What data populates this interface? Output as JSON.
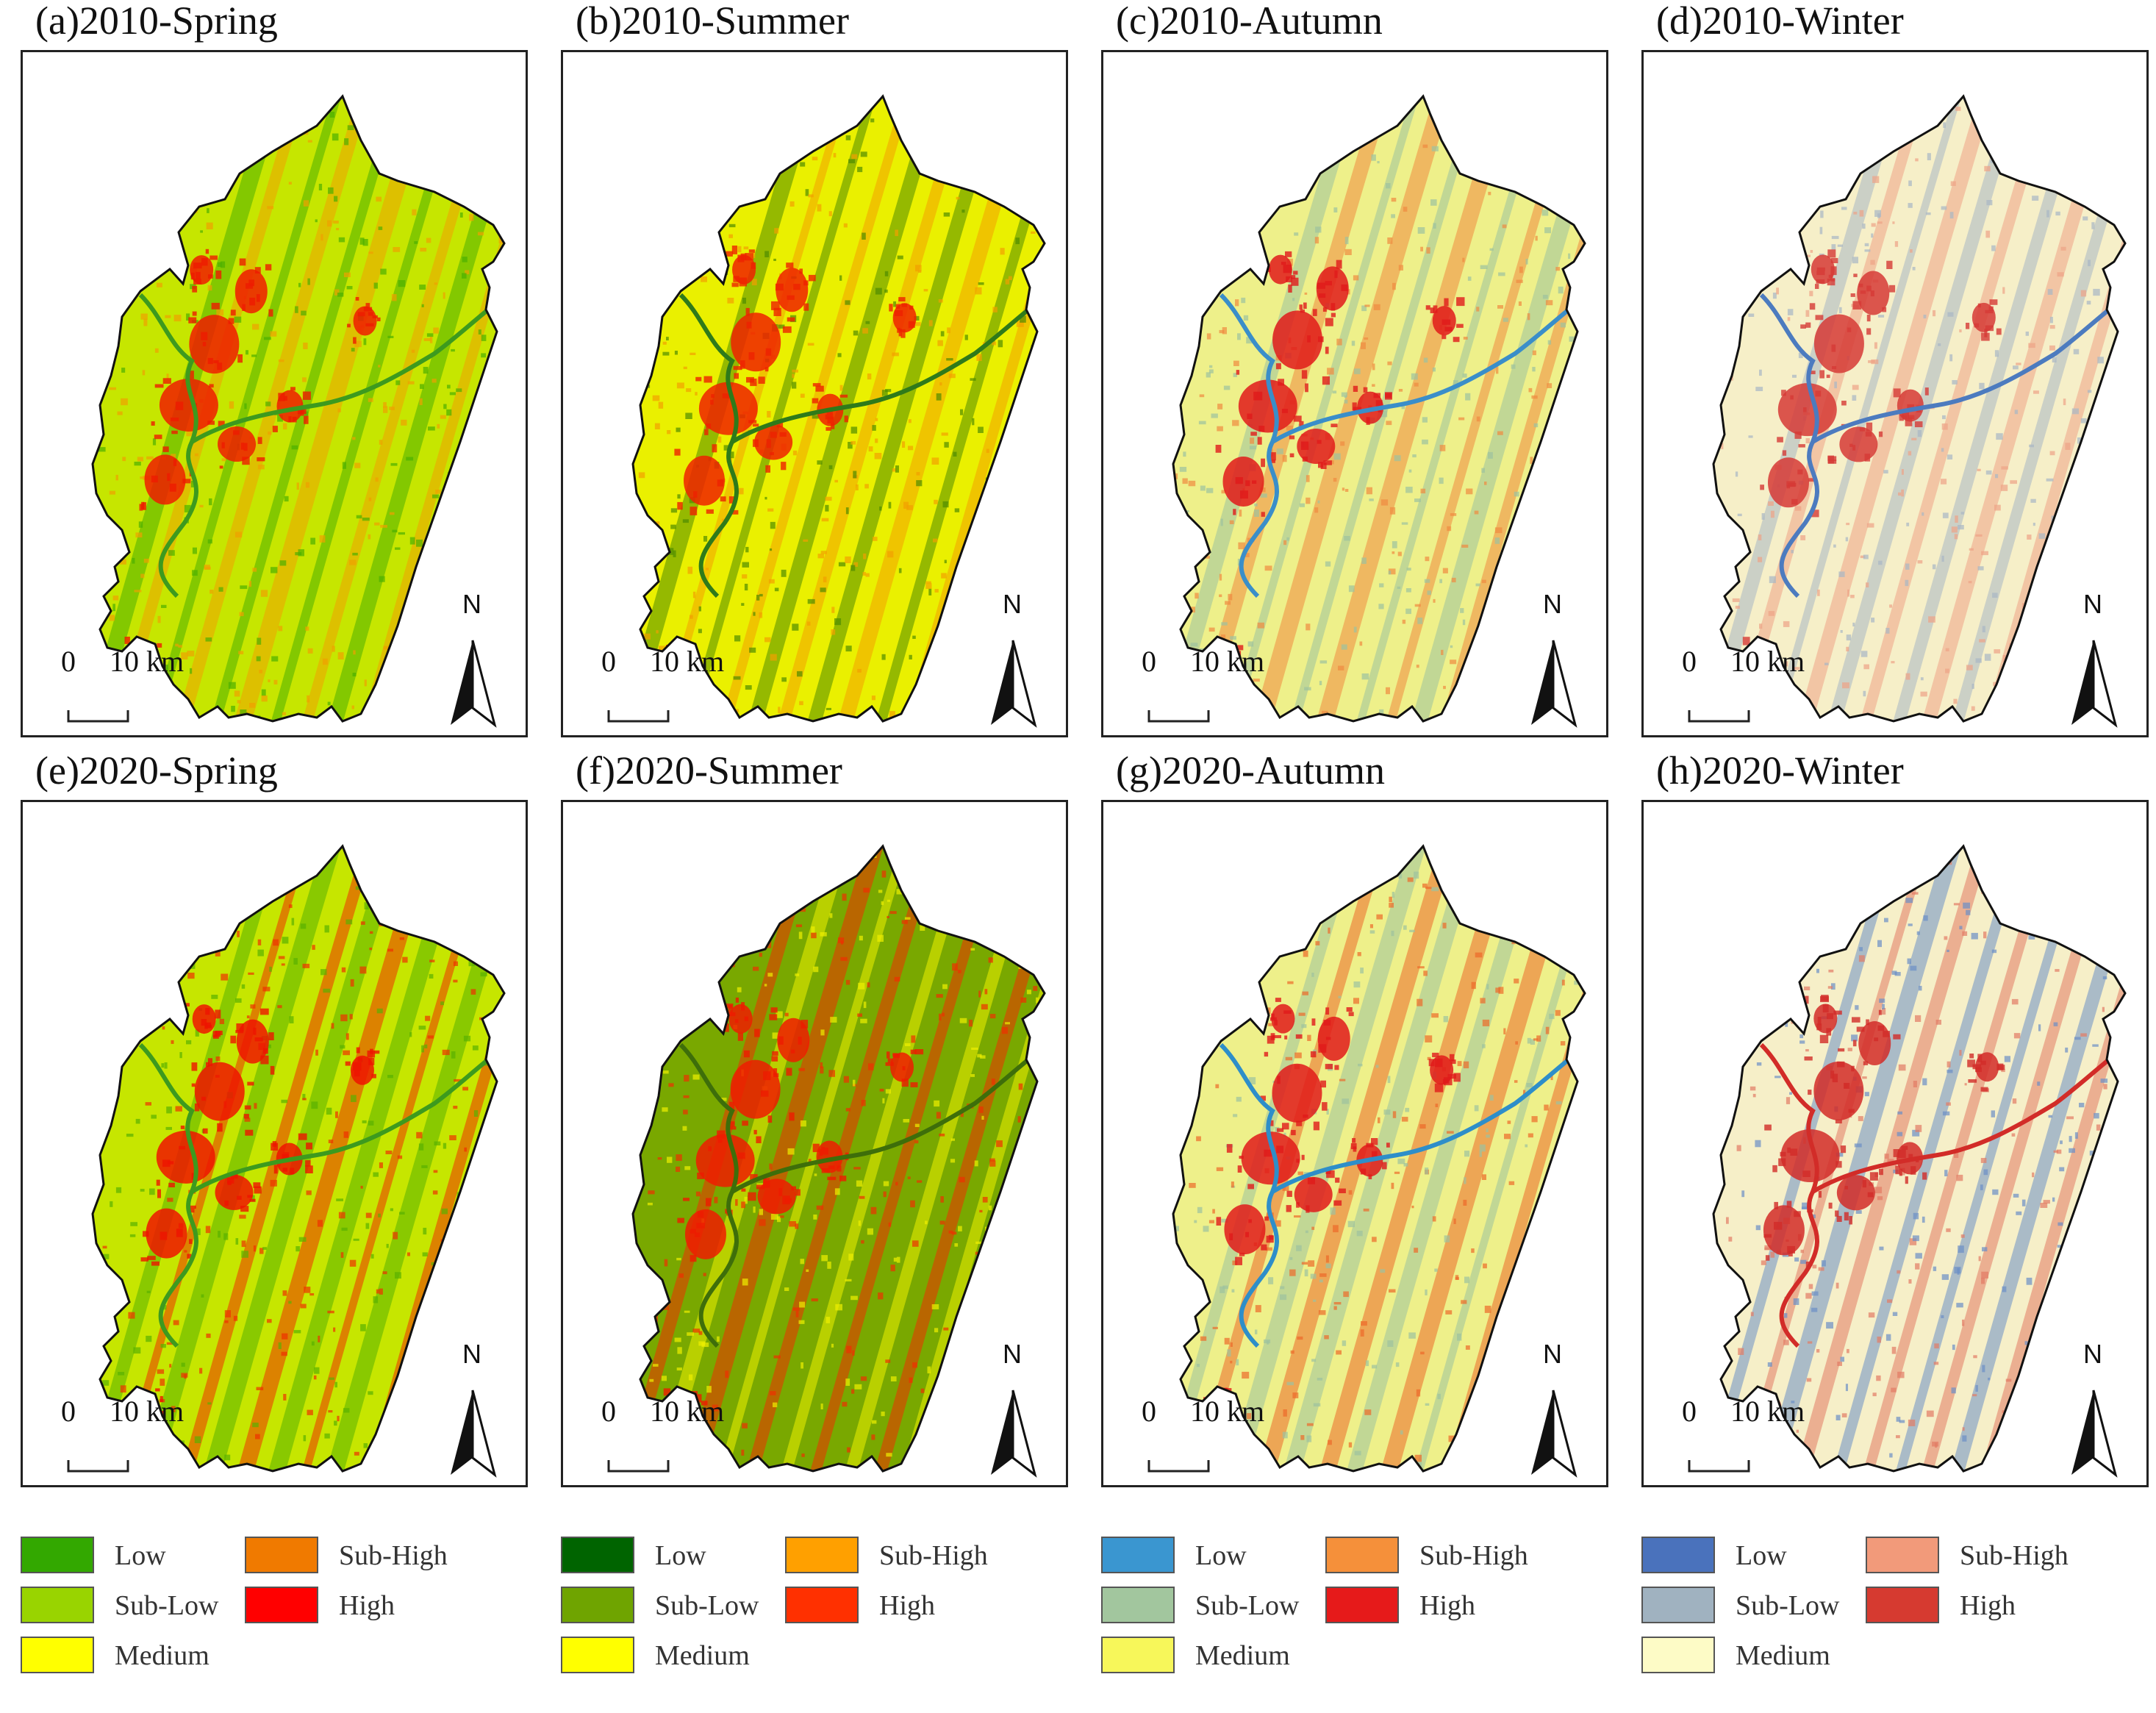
{
  "panels": [
    {
      "title": "(a)2010-Spring",
      "theme": 0,
      "base": "#c6e600",
      "tint_a": "#f0a000",
      "tint_b": "#4caf00",
      "hot": "#ee1c00",
      "river": "#3d9a1e"
    },
    {
      "title": "(b)2010-Summer",
      "theme": 1,
      "base": "#eaf000",
      "tint_a": "#f2a000",
      "tint_b": "#4f8c00",
      "hot": "#ee2200",
      "river": "#2f7a1a"
    },
    {
      "title": "(c)2010-Autumn",
      "theme": 2,
      "base": "#eef08a",
      "tint_a": "#f08a40",
      "tint_b": "#9dc29f",
      "hot": "#e01a1a",
      "river": "#3a8ec9"
    },
    {
      "title": "(d)2010-Winter",
      "theme": 3,
      "base": "#f6efc8",
      "tint_a": "#eea286",
      "tint_b": "#a8b7c4",
      "hot": "#d63a36",
      "river": "#4c7bbf"
    },
    {
      "title": "(e)2020-Spring",
      "theme": 0,
      "base": "#c6e600",
      "tint_a": "#ee3000",
      "tint_b": "#58b000",
      "hot": "#ee1400",
      "river": "#3d9a1e"
    },
    {
      "title": "(f)2020-Summer",
      "theme": 1,
      "base": "#79a800",
      "tint_a": "#eef000",
      "tint_b": "#ee3000",
      "hot": "#ee1c00",
      "river": "#3e6e0a"
    },
    {
      "title": "(g)2020-Autumn",
      "theme": 2,
      "base": "#eef08a",
      "tint_a": "#ec6a2a",
      "tint_b": "#9dc29f",
      "hot": "#e01a1a",
      "river": "#2e8ec9"
    },
    {
      "title": "(h)2020-Winter",
      "theme": 3,
      "base": "#f6efc8",
      "tint_a": "#e27a64",
      "tint_b": "#6b8fc6",
      "hot": "#d22c28",
      "river": "#d22c28"
    }
  ],
  "scale": {
    "zero": "0",
    "label": "10 km"
  },
  "north": "N",
  "legends": [
    {
      "items": [
        {
          "label": "Low",
          "color": "#33a800"
        },
        {
          "label": "Sub-High",
          "color": "#f07a00"
        },
        {
          "label": "Sub-Low",
          "color": "#99d400"
        },
        {
          "label": "High",
          "color": "#ff0000"
        },
        {
          "label": "Medium",
          "color": "#ffff00"
        }
      ]
    },
    {
      "items": [
        {
          "label": "Low",
          "color": "#006400"
        },
        {
          "label": "Sub-High",
          "color": "#ffa000"
        },
        {
          "label": "Sub-Low",
          "color": "#6fa400"
        },
        {
          "label": "High",
          "color": "#ff3000"
        },
        {
          "label": "Medium",
          "color": "#ffff00"
        }
      ]
    },
    {
      "items": [
        {
          "label": "Low",
          "color": "#3a96d0"
        },
        {
          "label": "Sub-High",
          "color": "#f5903a"
        },
        {
          "label": "Sub-Low",
          "color": "#a2c69e"
        },
        {
          "label": "High",
          "color": "#e61a1a"
        },
        {
          "label": "Medium",
          "color": "#f7f75a"
        }
      ]
    },
    {
      "items": [
        {
          "label": "Low",
          "color": "#4a72bc"
        },
        {
          "label": "Sub-High",
          "color": "#f29a7a"
        },
        {
          "label": "Sub-Low",
          "color": "#a0b2c0"
        },
        {
          "label": "High",
          "color": "#d63a30"
        },
        {
          "label": "Medium",
          "color": "#fdfbc6"
        }
      ]
    }
  ]
}
